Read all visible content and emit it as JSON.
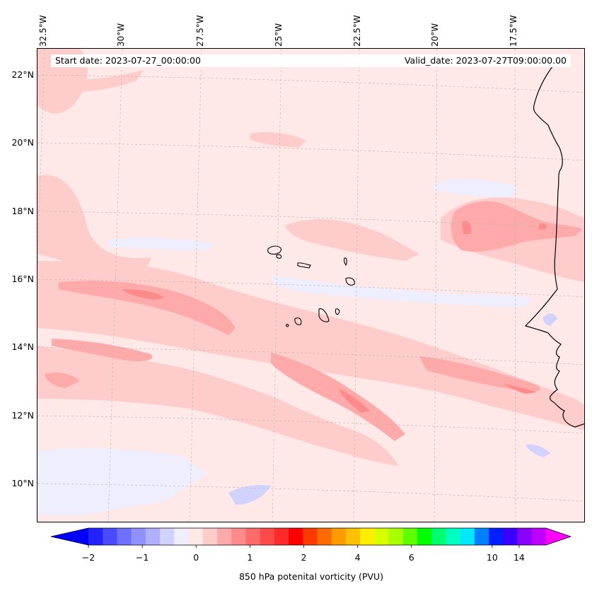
{
  "map": {
    "projection": "Lambert conformal (West Africa / Cape Verde region)",
    "lon_labels": [
      "32.5°W",
      "30°W",
      "27.5°W",
      "25°W",
      "22.5°W",
      "20°W",
      "17.5°W"
    ],
    "lat_labels": [
      "22°N",
      "20°N",
      "18°N",
      "16°N",
      "14°N",
      "12°N",
      "10°N"
    ],
    "start_date": "Start date: 2023-07-27_00:00:00",
    "valid_date": "Valid_date: 2023-07-27T09:00:00.00"
  },
  "colorbar": {
    "label": "850 hPa potenital vorticity (PVU)",
    "tick_labels": [
      "−2",
      "−1",
      "0",
      "1",
      "2",
      "4",
      "6",
      "10",
      "14"
    ],
    "tick_values": [
      -2,
      -1,
      0,
      1,
      2,
      4,
      6,
      10,
      14
    ],
    "colors": [
      "#0000ff",
      "#2222ff",
      "#4a4aff",
      "#7070ff",
      "#9090ff",
      "#b0b0ff",
      "#d2d2ff",
      "#eeeeff",
      "#ffe8e8",
      "#ffcccc",
      "#ffaaaa",
      "#ff8a8a",
      "#ff6a6a",
      "#ff4a4a",
      "#ff2a2a",
      "#ff0000",
      "#ff3a00",
      "#ff6a00",
      "#ff9a00",
      "#ffc000",
      "#ffee00",
      "#d8ff00",
      "#a8ff00",
      "#60ff00",
      "#00ff00",
      "#00ff70",
      "#00ffc0",
      "#00e8ff",
      "#0080ff",
      "#0020ff",
      "#3a00ff",
      "#8a00ff",
      "#c000ff",
      "#ff00ff"
    ],
    "extend": "both"
  },
  "colors": {
    "background": "#ffe8e8",
    "light_pink": "#ffcccc",
    "pink": "#ffaaaa",
    "red": "#ff8a8a",
    "light_blue": "#eeeeff",
    "blue": "#d2d2ff",
    "coast": "#000000",
    "grid": "#b4b4b4"
  }
}
